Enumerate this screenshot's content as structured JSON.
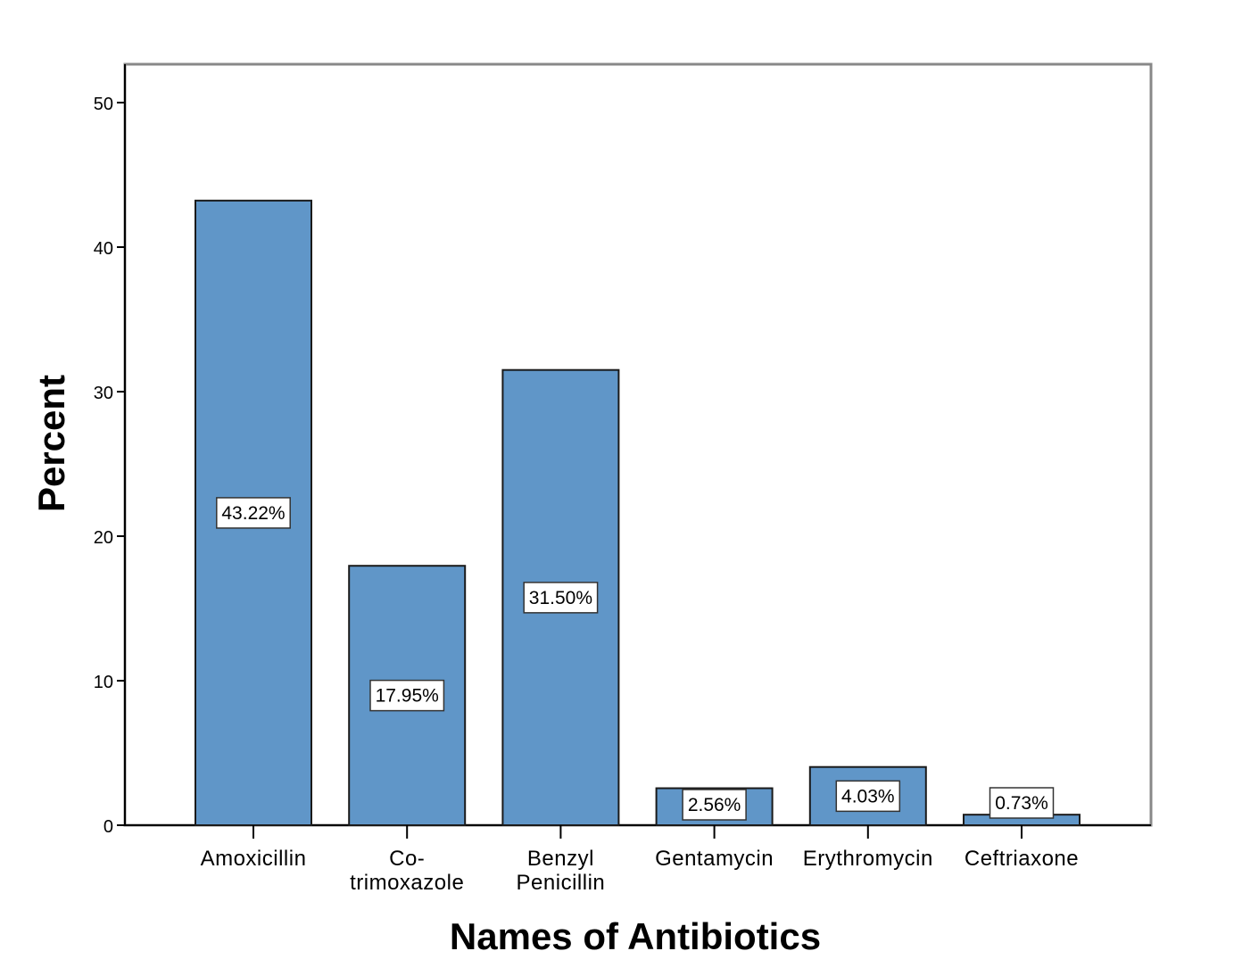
{
  "chart_data": {
    "type": "bar",
    "categories": [
      [
        "Amoxicillin"
      ],
      [
        "Co-",
        "trimoxazole"
      ],
      [
        "Benzyl",
        "Penicillin"
      ],
      [
        "Gentamycin"
      ],
      [
        "Erythromycin"
      ],
      [
        "Ceftriaxone"
      ]
    ],
    "values": [
      43.22,
      17.95,
      31.5,
      2.56,
      4.03,
      0.73
    ],
    "data_labels": [
      "43.22%",
      "17.95%",
      "31.50%",
      "2.56%",
      "4.03%",
      "0.73%"
    ],
    "xlabel": "Names of Antibiotics",
    "ylabel": "Percent",
    "ylim": [
      0,
      50
    ],
    "yticks": [
      0,
      10,
      20,
      30,
      40,
      50
    ],
    "ytick_labels": [
      "0",
      "10",
      "20",
      "30",
      "40",
      "50"
    ],
    "bar_color": "#6096c8",
    "grid": false
  }
}
